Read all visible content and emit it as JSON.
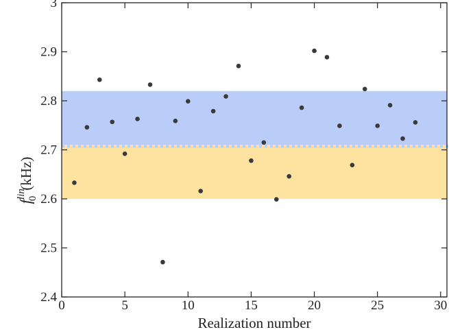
{
  "chart_data": {
    "type": "scatter",
    "xlabel": "Realization number",
    "ylabel": {
      "symbol": "f",
      "superscript": "lin",
      "subscript": "0",
      "unit": "(kHz)"
    },
    "xlim": [
      0,
      30.5
    ],
    "ylim": [
      2.4,
      3.0
    ],
    "xticks": [
      0,
      5,
      10,
      15,
      20,
      25,
      30
    ],
    "yticks": [
      2.4,
      2.5,
      2.6,
      2.7,
      2.8,
      2.9,
      3
    ],
    "bands": [
      {
        "y0": 2.71,
        "y1": 2.82,
        "color": "#b9cdf8"
      },
      {
        "y0": 2.6,
        "y1": 2.71,
        "color": "#fde39f"
      }
    ],
    "marker_color": "#3a3a3a",
    "grid": false,
    "x": [
      1,
      2,
      3,
      4,
      5,
      6,
      7,
      8,
      9,
      10,
      11,
      12,
      13,
      14,
      15,
      16,
      17,
      18,
      19,
      20,
      21,
      22,
      23,
      24,
      25,
      26,
      27,
      28
    ],
    "y": [
      2.633,
      2.746,
      2.843,
      2.757,
      2.692,
      2.763,
      2.833,
      2.471,
      2.759,
      2.799,
      2.616,
      2.779,
      2.809,
      2.871,
      2.678,
      2.715,
      2.599,
      2.646,
      2.786,
      2.902,
      2.889,
      2.749,
      2.669,
      2.824,
      2.749,
      2.791,
      2.723,
      2.756
    ]
  }
}
